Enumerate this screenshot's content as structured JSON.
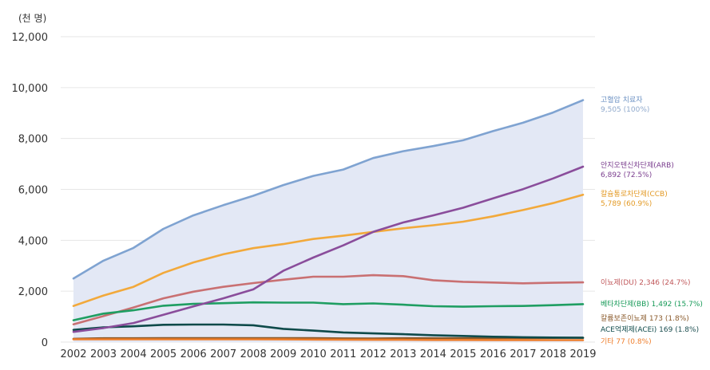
{
  "chart_data": {
    "type": "line",
    "unit_label": "(천 명)",
    "ylim": [
      0,
      12000
    ],
    "yticks": [
      0,
      2000,
      4000,
      6000,
      8000,
      10000,
      12000
    ],
    "ytick_labels": [
      "0",
      "2,000",
      "4,000",
      "6,000",
      "8,000",
      "10,000",
      "12,000"
    ],
    "grid": true,
    "x": [
      "2002",
      "2003",
      "2004",
      "2005",
      "2006",
      "2007",
      "2008",
      "2009",
      "2010",
      "2011",
      "2012",
      "2013",
      "2014",
      "2015",
      "2016",
      "2017",
      "2018",
      "2019"
    ],
    "series": [
      {
        "name": "고혈압 치료자",
        "value_label": "9,505 (100%)",
        "color": "#7fa3d1",
        "name_color": "#6e93c4",
        "value_color": "#8fa9cc",
        "area": true,
        "values": [
          2500,
          3200,
          3700,
          4450,
          4980,
          5380,
          5750,
          6170,
          6530,
          6780,
          7230,
          7500,
          7700,
          7930,
          8290,
          8620,
          9020,
          9505
        ]
      },
      {
        "name": "안지오텐신차단제(ARB)",
        "value_label": "6,892 (72.5%)",
        "color": "#8a4d9b",
        "name_color": "#7a3d8e",
        "value_color": "#7a3d8e",
        "values": [
          400,
          550,
          750,
          1070,
          1400,
          1720,
          2070,
          2800,
          3320,
          3800,
          4330,
          4700,
          4980,
          5280,
          5650,
          6010,
          6430,
          6892
        ]
      },
      {
        "name": "칼슘통로차단제(CCB)",
        "value_label": "5,789 (60.9%)",
        "color": "#f2a93b",
        "name_color": "#e39a25",
        "value_color": "#e39a25",
        "values": [
          1420,
          1830,
          2170,
          2720,
          3130,
          3450,
          3690,
          3850,
          4050,
          4180,
          4330,
          4470,
          4590,
          4730,
          4940,
          5190,
          5460,
          5789
        ]
      },
      {
        "name": "이뇨제(DU)",
        "value_label": "2,346 (24.7%)",
        "color": "#c97072",
        "name_color": "#c0585b",
        "value_color": "#c0585b",
        "values": [
          700,
          1020,
          1360,
          1720,
          1980,
          2170,
          2320,
          2450,
          2570,
          2570,
          2630,
          2590,
          2430,
          2370,
          2340,
          2310,
          2330,
          2346
        ]
      },
      {
        "name": "베타차단제(BB)",
        "value_label": "1,492 (15.7%)",
        "color": "#1f9e62",
        "name_color": "#179a58",
        "value_color": "#179a58",
        "values": [
          860,
          1120,
          1250,
          1430,
          1500,
          1530,
          1560,
          1550,
          1550,
          1490,
          1520,
          1470,
          1410,
          1390,
          1410,
          1420,
          1450,
          1492
        ]
      },
      {
        "name": "칼륨보존이뇨제",
        "value_label": "173 (1.8%)",
        "color": "#8a5a2b",
        "name_color": "#8a5a2b",
        "value_color": "#8a5a2b",
        "values": [
          130,
          150,
          150,
          155,
          155,
          155,
          155,
          155,
          155,
          145,
          140,
          150,
          150,
          150,
          155,
          160,
          165,
          173
        ]
      },
      {
        "name": "ACE억제제(ACEi)",
        "value_label": "169 (1.8%)",
        "color": "#0e4a4a",
        "name_color": "#0e4a4a",
        "value_color": "#1c4e50",
        "values": [
          480,
          580,
          620,
          680,
          690,
          690,
          660,
          520,
          450,
          380,
          340,
          310,
          270,
          240,
          210,
          190,
          180,
          169
        ]
      },
      {
        "name": "기타",
        "value_label": "77 (0.8%)",
        "color": "#ef7d2a",
        "name_color": "#ef7d2a",
        "value_color": "#ef7d2a",
        "values": [
          110,
          110,
          110,
          110,
          110,
          110,
          110,
          105,
          100,
          95,
          90,
          90,
          85,
          85,
          80,
          80,
          78,
          77
        ]
      }
    ]
  }
}
